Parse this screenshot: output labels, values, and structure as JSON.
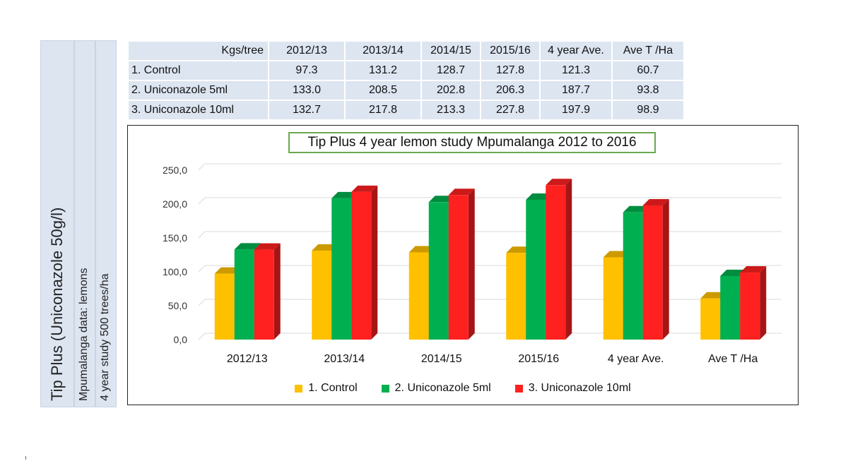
{
  "side_labels": {
    "product": "Tip Plus (Uniconazole 50g/l)",
    "region": "Mpumalanga data: lemons",
    "study": "4 year study 500 trees/ha"
  },
  "table": {
    "corner": "Kgs/tree",
    "columns": [
      "2012/13",
      "2013/14",
      "2014/15",
      "2015/16",
      "4 year Ave.",
      "Ave T /Ha"
    ],
    "rows": [
      {
        "label": "1. Control",
        "values": [
          "97.3",
          "131.2",
          "128.7",
          "127.8",
          "121.3",
          "60.7"
        ]
      },
      {
        "label": "2. Uniconazole  5ml",
        "values": [
          "133.0",
          "208.5",
          "202.8",
          "206.3",
          "187.7",
          "93.8"
        ]
      },
      {
        "label": "3. Uniconazole   10ml",
        "values": [
          "132.7",
          "217.8",
          "213.3",
          "227.8",
          "197.9",
          "98.9"
        ]
      }
    ]
  },
  "chart_data": {
    "type": "bar",
    "title": "Tip Plus 4 year lemon study Mpumalanga 2012 to 2016",
    "categories": [
      "2012/13",
      "2013/14",
      "2014/15",
      "2015/16",
      "4 year Ave.",
      "Ave T /Ha"
    ],
    "series": [
      {
        "name": "1. Control",
        "color": "#FFC000",
        "values": [
          97.3,
          131.2,
          128.7,
          127.8,
          121.3,
          60.7
        ]
      },
      {
        "name": "2. Uniconazole  5ml",
        "color": "#00B050",
        "values": [
          133.0,
          208.5,
          202.8,
          206.3,
          187.7,
          93.8
        ]
      },
      {
        "name": "3. Uniconazole   10ml",
        "color": "#FF2020",
        "values": [
          132.7,
          217.8,
          213.3,
          227.8,
          197.9,
          98.9
        ]
      }
    ],
    "yticks": [
      "0,0",
      "50,0",
      "100,0",
      "150,0",
      "200,0",
      "250,0"
    ],
    "ylim": [
      0,
      250
    ],
    "grid": true,
    "legend_position": "bottom",
    "style": "3d-column"
  }
}
